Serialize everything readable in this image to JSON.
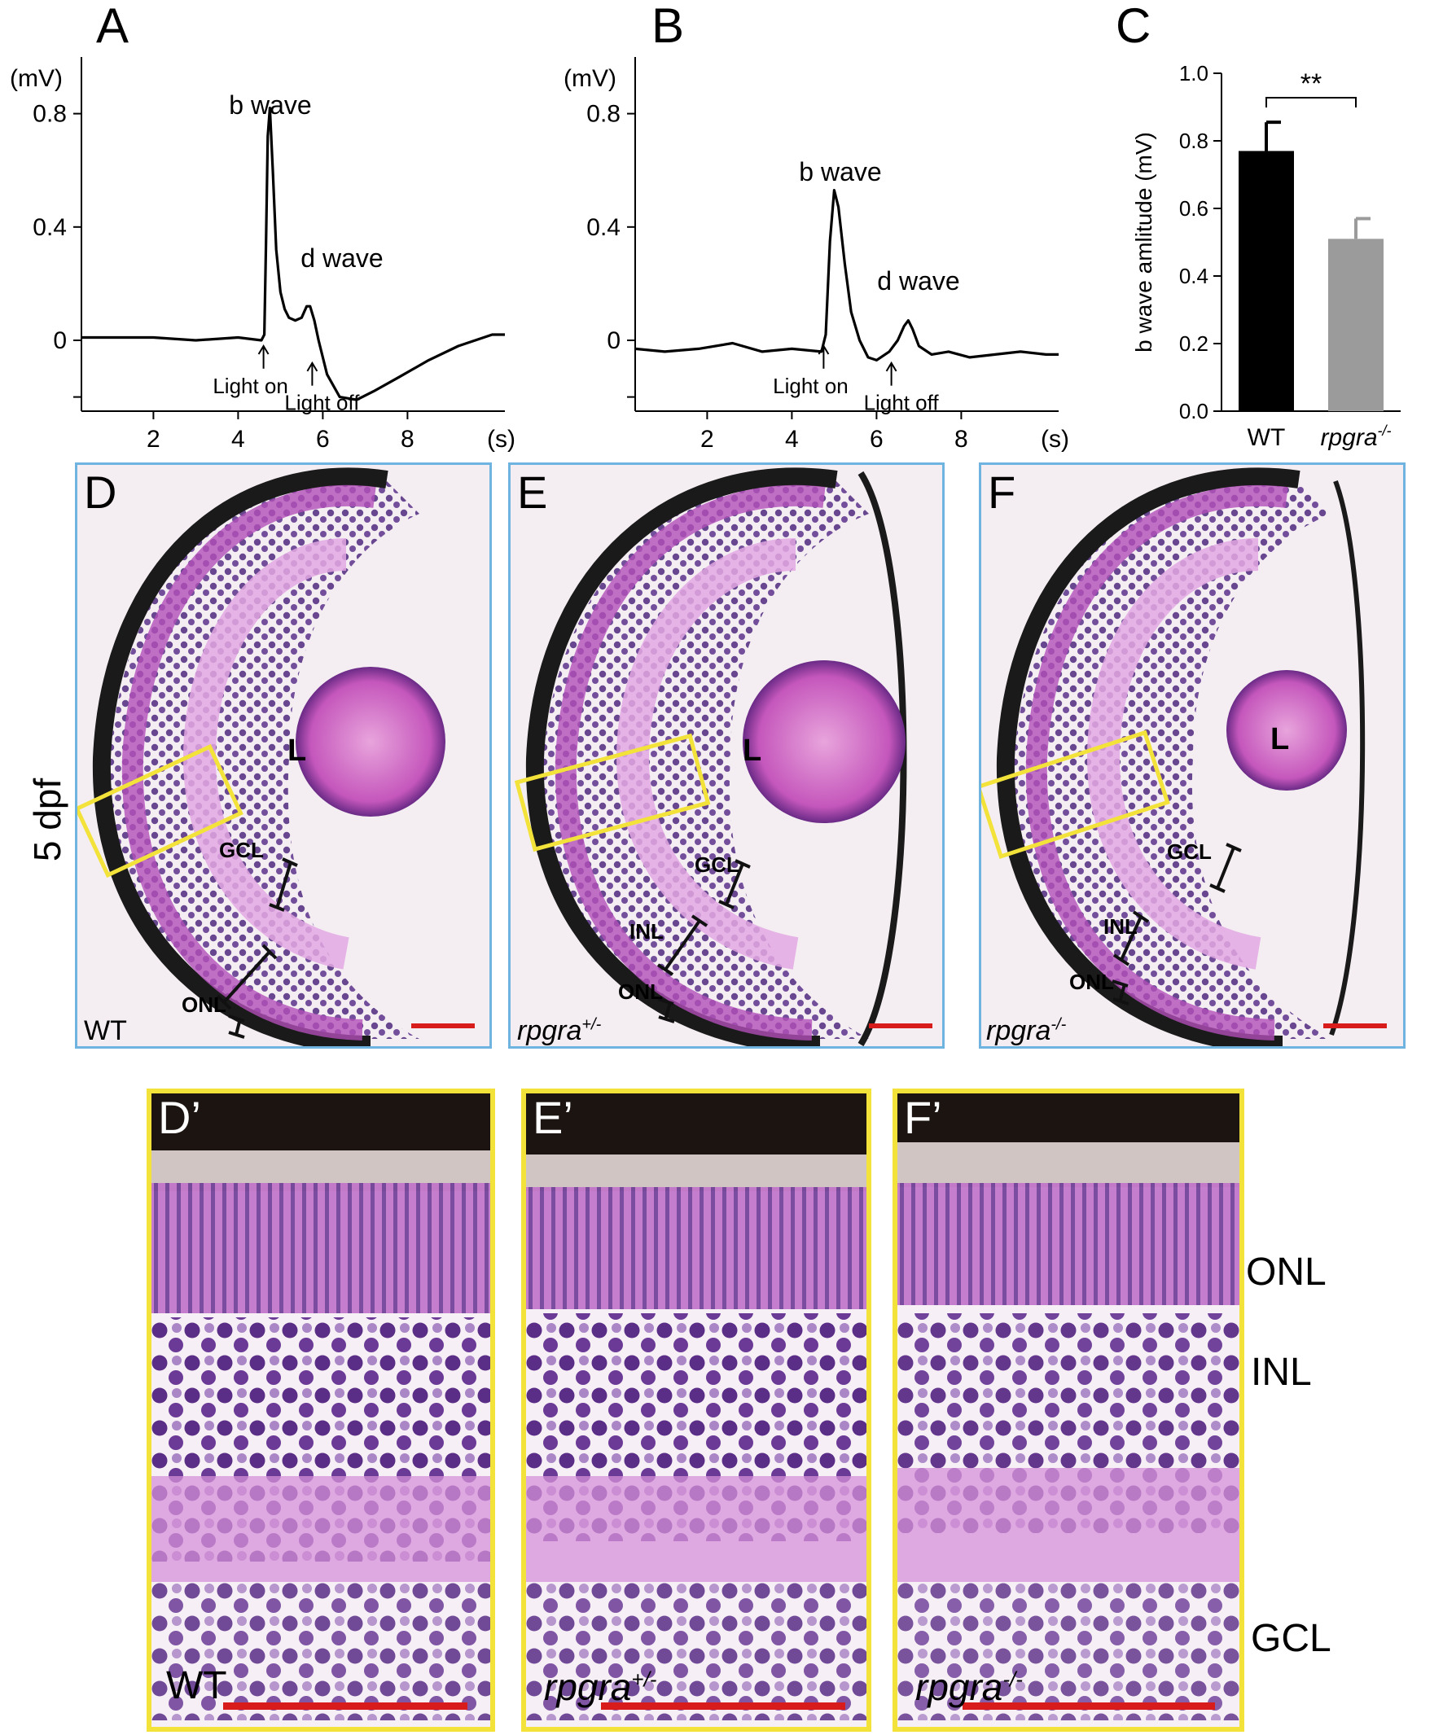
{
  "panels": {
    "A": {
      "letter": "A"
    },
    "B": {
      "letter": "B"
    },
    "C": {
      "letter": "C"
    },
    "D": {
      "letter": "D",
      "genotype": "WT"
    },
    "E": {
      "letter": "E",
      "genotype_base": "rpgra",
      "genotype_sup": "+/-"
    },
    "F": {
      "letter": "F",
      "genotype_base": "rpgra",
      "genotype_sup": "-/-"
    },
    "Dp": {
      "letter": "D’",
      "genotype": "WT"
    },
    "Ep": {
      "letter": "E’",
      "genotype_base": "rpgra",
      "genotype_sup": "+/-"
    },
    "Fp": {
      "letter": "F’",
      "genotype_base": "rpgra",
      "genotype_sup": "-/-"
    }
  },
  "side_label": "5 dpf",
  "lens_label": "L",
  "layer_labels": {
    "onl": "ONL",
    "inl": "INL",
    "gcl": "GCL"
  },
  "colors": {
    "panel_border": "#6fb3e0",
    "zoom_border": "#f2e23a",
    "scale_bar": "#d81b1b",
    "wt_bar": "#000000",
    "ko_bar": "#9b9b9b",
    "tissue_bg": "#f4eef3",
    "stain_purple": "#5a2d86",
    "stain_pink": "#d88ad8"
  },
  "chart_data": [
    {
      "type": "line",
      "panel": "A",
      "ylabel": "(mV)",
      "xlabel": "(s)",
      "xlim": [
        0.3,
        10.3
      ],
      "ylim": [
        -0.25,
        1.0
      ],
      "xticks": [
        2,
        4,
        6,
        8
      ],
      "yticks": [
        0,
        0.4,
        0.8
      ],
      "ytick_labels": [
        "0",
        "0.4",
        "0.8"
      ],
      "series": [
        {
          "x": [
            0.3,
            1,
            2,
            3,
            4,
            4.55,
            4.62,
            4.66,
            4.7,
            4.75,
            4.82,
            4.9,
            5.0,
            5.1,
            5.2,
            5.35,
            5.5,
            5.62,
            5.7,
            5.8,
            5.9,
            6.1,
            6.4,
            6.8,
            7.2,
            7.8,
            8.5,
            9.2,
            10.0,
            10.3
          ],
          "y": [
            0.01,
            0.01,
            0.01,
            0.0,
            0.01,
            0.0,
            0.02,
            0.35,
            0.72,
            0.82,
            0.6,
            0.32,
            0.17,
            0.11,
            0.08,
            0.07,
            0.08,
            0.12,
            0.12,
            0.07,
            0.0,
            -0.12,
            -0.2,
            -0.21,
            -0.18,
            -0.13,
            -0.07,
            -0.02,
            0.02,
            0.02
          ]
        }
      ],
      "annotations": {
        "b_wave": "b wave",
        "d_wave": "d wave",
        "light_on": "Light on",
        "light_off": "Light off"
      }
    },
    {
      "type": "line",
      "panel": "B",
      "ylabel": "(mV)",
      "xlabel": "(s)",
      "xlim": [
        0.3,
        10.3
      ],
      "ylim": [
        -0.25,
        1.0
      ],
      "xticks": [
        2,
        4,
        6,
        8
      ],
      "yticks": [
        0,
        0.4,
        0.8
      ],
      "ytick_labels": [
        "0",
        "0.4",
        "0.8"
      ],
      "series": [
        {
          "x": [
            0.3,
            1,
            1.8,
            2.6,
            3.3,
            4.0,
            4.7,
            4.8,
            4.9,
            5.0,
            5.1,
            5.25,
            5.4,
            5.6,
            5.8,
            6.0,
            6.3,
            6.5,
            6.65,
            6.75,
            6.85,
            7.0,
            7.3,
            7.7,
            8.2,
            8.8,
            9.4,
            10.0,
            10.3
          ],
          "y": [
            -0.03,
            -0.04,
            -0.03,
            -0.01,
            -0.04,
            -0.03,
            -0.04,
            0.02,
            0.35,
            0.53,
            0.47,
            0.27,
            0.1,
            0.0,
            -0.06,
            -0.07,
            -0.04,
            0.0,
            0.05,
            0.07,
            0.04,
            -0.02,
            -0.05,
            -0.04,
            -0.06,
            -0.05,
            -0.04,
            -0.05,
            -0.05
          ]
        }
      ],
      "annotations": {
        "b_wave": "b wave",
        "d_wave": "d wave",
        "light_on": "Light on",
        "light_off": "Light off"
      }
    },
    {
      "type": "bar",
      "panel": "C",
      "categories": [
        "WT",
        "rpgra"
      ],
      "category_sups": [
        "",
        "-/-"
      ],
      "values": [
        0.77,
        0.51
      ],
      "errors": [
        0.085,
        0.06
      ],
      "ylabel": "b wave amlitude (mV)",
      "ylim": [
        0.0,
        1.0
      ],
      "yticks": [
        0.0,
        0.2,
        0.4,
        0.6,
        0.8,
        1.0
      ],
      "ytick_labels": [
        "0.0",
        "0.2",
        "0.4",
        "0.6",
        "0.8",
        "1.0"
      ],
      "significance": "**"
    }
  ]
}
